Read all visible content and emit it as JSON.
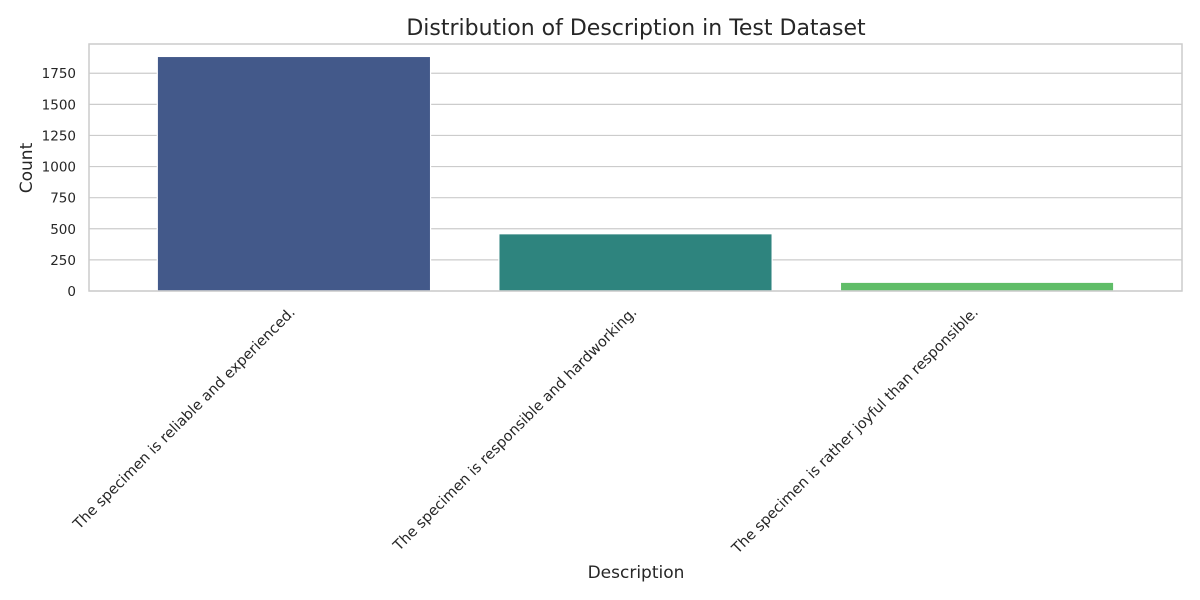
{
  "chart_data": {
    "type": "bar",
    "title": "Distribution of Description in Test Dataset",
    "xlabel": "Description",
    "ylabel": "Count",
    "categories": [
      "The specimen is reliable and experienced.",
      "The specimen is responsible and hardworking.",
      "The specimen is rather joyful than responsible."
    ],
    "values": [
      1885,
      460,
      70
    ],
    "colors": [
      "#43598a",
      "#2e847e",
      "#60bd68"
    ],
    "ylim": [
      0,
      1985
    ],
    "yticks": [
      0,
      250,
      500,
      750,
      1000,
      1250,
      1500,
      1750
    ],
    "grid": "horizontal",
    "legend": "none"
  }
}
